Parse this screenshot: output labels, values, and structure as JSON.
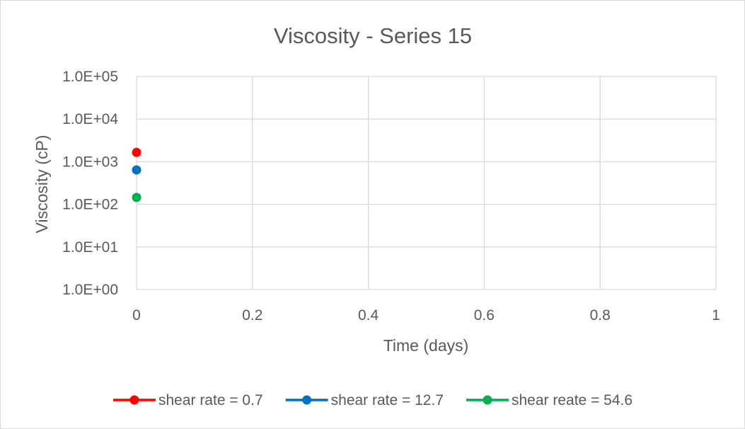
{
  "chart_data": {
    "type": "scatter",
    "title": "Viscosity - Series 15",
    "xlabel": "Time (days)",
    "ylabel": "Viscosity (cP)",
    "xlim": [
      0,
      1
    ],
    "ylim": [
      1,
      100000
    ],
    "yscale": "log",
    "x_ticks": [
      "0",
      "0.2",
      "0.4",
      "0.6",
      "0.8",
      "1"
    ],
    "y_ticks": [
      "1.0E+00",
      "1.0E+01",
      "1.0E+02",
      "1.0E+03",
      "1.0E+04",
      "1.0E+05"
    ],
    "grid": true,
    "legend_position": "bottom",
    "series": [
      {
        "name": "shear rate = 0.7",
        "color": "#ff0000",
        "points": [
          {
            "x": 0,
            "y": 1650
          }
        ]
      },
      {
        "name": "shear rate = 12.7",
        "color": "#0070c0",
        "points": [
          {
            "x": 0,
            "y": 640
          }
        ]
      },
      {
        "name": "shear reate = 54.6",
        "color": "#00b050",
        "points": [
          {
            "x": 0,
            "y": 145
          }
        ]
      }
    ]
  }
}
